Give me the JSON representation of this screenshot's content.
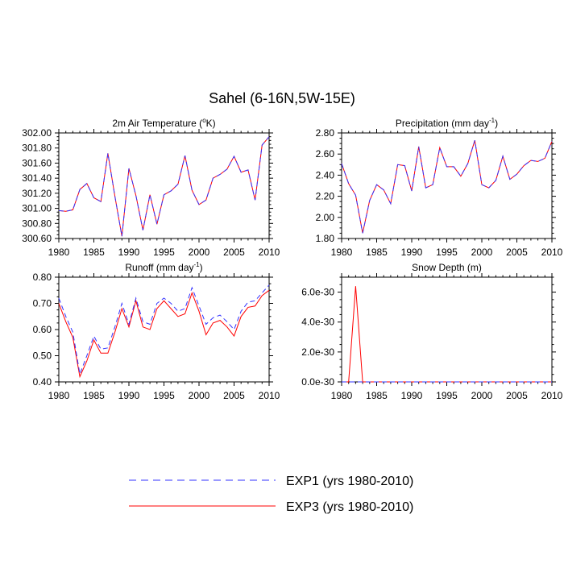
{
  "title": "Sahel (6-16N,5W-15E)",
  "legend": [
    {
      "label": "EXP1 (yrs 1980-2010)",
      "color": "#3333ff",
      "dash": "dashed"
    },
    {
      "label": "EXP3 (yrs 1980-2010)",
      "color": "#ff0000",
      "dash": "solid"
    }
  ],
  "chart_data": [
    {
      "type": "line",
      "title_parts": [
        "2m Air Temperature (",
        "o",
        "K)"
      ],
      "title_sup_index": 1,
      "x": [
        1980,
        1981,
        1982,
        1983,
        1984,
        1985,
        1986,
        1987,
        1988,
        1989,
        1990,
        1991,
        1992,
        1993,
        1994,
        1995,
        1996,
        1997,
        1998,
        1999,
        2000,
        2001,
        2002,
        2003,
        2004,
        2005,
        2006,
        2007,
        2008,
        2009,
        2010
      ],
      "xlim": [
        1980,
        2010
      ],
      "xticks": [
        "1980",
        "1985",
        "1990",
        "1995",
        "2000",
        "2005",
        "2010"
      ],
      "ylim": [
        300.6,
        302.0
      ],
      "yticks": [
        "300.60",
        "300.80",
        "301.00",
        "301.20",
        "301.40",
        "301.60",
        "301.80",
        "302.00"
      ],
      "series": [
        {
          "name": "EXP1",
          "values": [
            300.97,
            300.96,
            300.98,
            301.25,
            301.33,
            301.14,
            301.09,
            301.73,
            301.16,
            300.63,
            301.53,
            301.17,
            300.71,
            301.18,
            300.79,
            301.18,
            301.23,
            301.32,
            301.7,
            301.24,
            301.05,
            301.11,
            301.4,
            301.45,
            301.52,
            301.69,
            301.48,
            301.51,
            301.11,
            301.84,
            301.95
          ]
        },
        {
          "name": "EXP3",
          "values": [
            300.97,
            300.96,
            300.98,
            301.25,
            301.33,
            301.14,
            301.09,
            301.73,
            301.16,
            300.63,
            301.53,
            301.17,
            300.71,
            301.18,
            300.79,
            301.18,
            301.23,
            301.32,
            301.7,
            301.24,
            301.05,
            301.11,
            301.4,
            301.45,
            301.52,
            301.69,
            301.48,
            301.51,
            301.11,
            301.84,
            301.95
          ]
        }
      ]
    },
    {
      "type": "line",
      "title_parts": [
        "Precipitation (mm day",
        "-1",
        ")"
      ],
      "title_sup_index": 1,
      "x": [
        1980,
        1981,
        1982,
        1983,
        1984,
        1985,
        1986,
        1987,
        1988,
        1989,
        1990,
        1991,
        1992,
        1993,
        1994,
        1995,
        1996,
        1997,
        1998,
        1999,
        2000,
        2001,
        2002,
        2003,
        2004,
        2005,
        2006,
        2007,
        2008,
        2009,
        2010
      ],
      "xlim": [
        1980,
        2010
      ],
      "xticks": [
        "1980",
        "1985",
        "1990",
        "1995",
        "2000",
        "2005",
        "2010"
      ],
      "ylim": [
        1.8,
        2.8
      ],
      "yticks": [
        "1.80",
        "2.00",
        "2.20",
        "2.40",
        "2.60",
        "2.80"
      ],
      "series": [
        {
          "name": "EXP1",
          "values": [
            2.51,
            2.32,
            2.21,
            1.85,
            2.16,
            2.31,
            2.26,
            2.13,
            2.5,
            2.49,
            2.25,
            2.67,
            2.28,
            2.31,
            2.66,
            2.48,
            2.48,
            2.39,
            2.51,
            2.73,
            2.31,
            2.28,
            2.35,
            2.58,
            2.36,
            2.41,
            2.49,
            2.54,
            2.53,
            2.56,
            2.72
          ]
        },
        {
          "name": "EXP3",
          "values": [
            2.51,
            2.32,
            2.21,
            1.85,
            2.16,
            2.31,
            2.26,
            2.13,
            2.5,
            2.49,
            2.25,
            2.67,
            2.28,
            2.31,
            2.66,
            2.48,
            2.48,
            2.39,
            2.51,
            2.73,
            2.31,
            2.28,
            2.35,
            2.58,
            2.36,
            2.41,
            2.49,
            2.54,
            2.53,
            2.56,
            2.72
          ]
        }
      ]
    },
    {
      "type": "line",
      "title_parts": [
        "Runoff (mm day",
        "-1",
        ")"
      ],
      "title_sup_index": 1,
      "x": [
        1980,
        1981,
        1982,
        1983,
        1984,
        1985,
        1986,
        1987,
        1988,
        1989,
        1990,
        1991,
        1992,
        1993,
        1994,
        1995,
        1996,
        1997,
        1998,
        1999,
        2000,
        2001,
        2002,
        2003,
        2004,
        2005,
        2006,
        2007,
        2008,
        2009,
        2010
      ],
      "xlim": [
        1980,
        2010
      ],
      "xticks": [
        "1980",
        "1985",
        "1990",
        "1995",
        "2000",
        "2005",
        "2010"
      ],
      "ylim": [
        0.4,
        0.8
      ],
      "yticks": [
        "0.40",
        "0.50",
        "0.60",
        "0.70",
        "0.80"
      ],
      "series": [
        {
          "name": "EXP1",
          "values": [
            0.72,
            0.65,
            0.59,
            0.43,
            0.5,
            0.575,
            0.525,
            0.53,
            0.61,
            0.7,
            0.62,
            0.72,
            0.63,
            0.62,
            0.7,
            0.72,
            0.7,
            0.67,
            0.68,
            0.76,
            0.69,
            0.62,
            0.645,
            0.655,
            0.63,
            0.6,
            0.67,
            0.705,
            0.71,
            0.74,
            0.77
          ]
        },
        {
          "name": "EXP3",
          "values": [
            0.7,
            0.63,
            0.57,
            0.42,
            0.48,
            0.56,
            0.51,
            0.51,
            0.59,
            0.68,
            0.61,
            0.71,
            0.61,
            0.6,
            0.68,
            0.71,
            0.68,
            0.65,
            0.66,
            0.74,
            0.67,
            0.58,
            0.625,
            0.635,
            0.61,
            0.575,
            0.65,
            0.685,
            0.69,
            0.73,
            0.75
          ]
        }
      ]
    },
    {
      "type": "line",
      "title_parts": [
        "Snow Depth (m)"
      ],
      "title_sup_index": -1,
      "x": [
        1980,
        1981,
        1982,
        1983,
        1984,
        1985,
        1986,
        1987,
        1988,
        1989,
        1990,
        1991,
        1992,
        1993,
        1994,
        1995,
        1996,
        1997,
        1998,
        1999,
        2000,
        2001,
        2002,
        2003,
        2004,
        2005,
        2006,
        2007,
        2008,
        2009,
        2010
      ],
      "xlim": [
        1980,
        2010
      ],
      "xticks": [
        "1980",
        "1985",
        "1990",
        "1995",
        "2000",
        "2005",
        "2010"
      ],
      "ylim": [
        0,
        7e-30
      ],
      "ytick_values": [
        0,
        2e-30,
        4e-30,
        6e-30
      ],
      "yticks": [
        "0.0e-30",
        "2.0e-30",
        "4.0e-30",
        "6.0e-30"
      ],
      "series": [
        {
          "name": "EXP1",
          "values": [
            0,
            0,
            0,
            0,
            0,
            0,
            0,
            0,
            0,
            0,
            0,
            0,
            0,
            0,
            0,
            0,
            0,
            0,
            0,
            0,
            0,
            0,
            0,
            0,
            0,
            0,
            0,
            0,
            0,
            0,
            0
          ]
        },
        {
          "name": "EXP3",
          "values": [
            0,
            0,
            6.4e-30,
            0,
            0,
            0,
            0,
            0,
            0,
            0,
            0,
            0,
            0,
            0,
            0,
            0,
            0,
            0,
            0,
            0,
            0,
            0,
            0,
            0,
            0,
            0,
            0,
            0,
            0,
            0,
            0
          ]
        }
      ]
    }
  ]
}
